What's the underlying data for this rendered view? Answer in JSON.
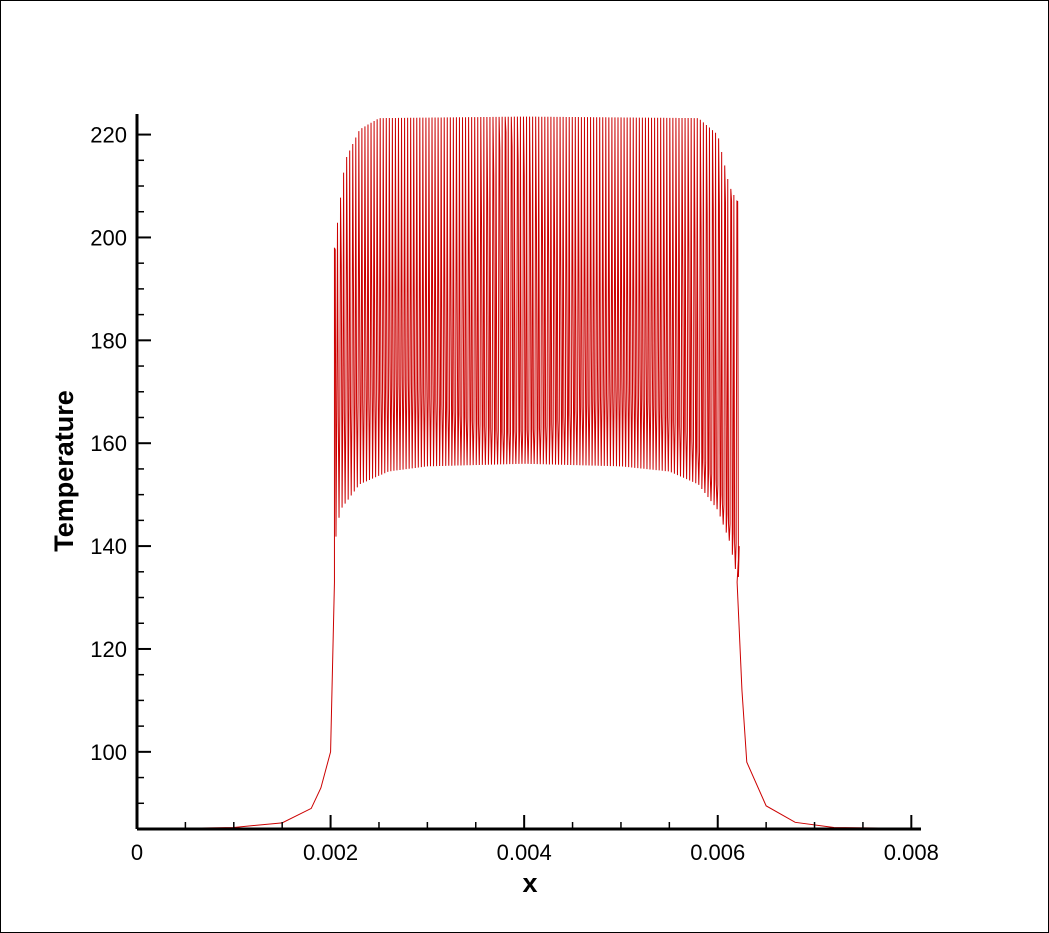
{
  "chart_data": {
    "type": "line",
    "title": "",
    "xlabel": "x",
    "ylabel": "Temperature",
    "xlim": [
      0,
      0.0081
    ],
    "ylim": [
      85,
      224
    ],
    "x_ticks": [
      0,
      0.002,
      0.004,
      0.006,
      0.008
    ],
    "x_tick_labels": [
      "0",
      "0.002",
      "0.004",
      "0.006",
      "0.008"
    ],
    "x_minor_step": 0.0005,
    "y_ticks": [
      100,
      120,
      140,
      160,
      180,
      200,
      220
    ],
    "y_tick_labels": [
      "100",
      "120",
      "140",
      "160",
      "180",
      "200",
      "220"
    ],
    "y_minor_step": 5,
    "grid": false,
    "series": [
      {
        "color": "#cc0000",
        "oscillation_start_x": 0.00204,
        "oscillation_end_x": 0.0062,
        "oscillation_period_x": 3.15e-05,
        "baseline": [
          [
            0.0,
            85.0
          ],
          [
            0.001,
            85.3
          ],
          [
            0.0015,
            86.2
          ],
          [
            0.0018,
            89.0
          ],
          [
            0.0019,
            93.0
          ],
          [
            0.002,
            100.0
          ],
          [
            0.00204,
            133.0
          ]
        ],
        "tail": [
          [
            0.0062,
            133.0
          ],
          [
            0.00625,
            112.0
          ],
          [
            0.0063,
            98.0
          ],
          [
            0.0065,
            89.5
          ],
          [
            0.0068,
            86.3
          ],
          [
            0.0072,
            85.3
          ],
          [
            0.0081,
            85.1
          ]
        ],
        "upper_envelope": [
          [
            0.00204,
            198
          ],
          [
            0.00215,
            215
          ],
          [
            0.0023,
            221
          ],
          [
            0.0025,
            223.2
          ],
          [
            0.004,
            223.5
          ],
          [
            0.0058,
            223.2
          ],
          [
            0.006,
            220
          ],
          [
            0.00612,
            210
          ],
          [
            0.0062,
            207
          ]
        ],
        "lower_envelope": [
          [
            0.00204,
            140
          ],
          [
            0.0021,
            147
          ],
          [
            0.0023,
            152
          ],
          [
            0.0026,
            154.5
          ],
          [
            0.003,
            155.5
          ],
          [
            0.004,
            156.0
          ],
          [
            0.005,
            155.5
          ],
          [
            0.0055,
            154.5
          ],
          [
            0.0058,
            152
          ],
          [
            0.006,
            147
          ],
          [
            0.00612,
            141
          ],
          [
            0.0062,
            134
          ]
        ],
        "mid_envelope": [
          [
            0.00204,
            165
          ],
          [
            0.0023,
            168
          ],
          [
            0.0025,
            170
          ],
          [
            0.0028,
            172
          ],
          [
            0.0031,
            168
          ],
          [
            0.0035,
            164
          ],
          [
            0.0038,
            162
          ],
          [
            0.0042,
            163
          ],
          [
            0.0045,
            166
          ],
          [
            0.0048,
            169
          ],
          [
            0.005,
            171
          ],
          [
            0.0053,
            168
          ],
          [
            0.0057,
            162
          ],
          [
            0.006,
            152
          ],
          [
            0.0062,
            140
          ]
        ],
        "spike_envelope": [
          [
            0.00204,
            198
          ],
          [
            0.0022,
            190
          ],
          [
            0.0025,
            178
          ],
          [
            0.0028,
            172
          ],
          [
            0.0031,
            178
          ],
          [
            0.0034,
            190
          ],
          [
            0.0036,
            205
          ],
          [
            0.0038,
            221
          ],
          [
            0.004,
            212
          ],
          [
            0.0042,
            198
          ],
          [
            0.0045,
            186
          ],
          [
            0.0048,
            175
          ],
          [
            0.0051,
            172
          ],
          [
            0.0054,
            180
          ],
          [
            0.0057,
            196
          ],
          [
            0.0059,
            205
          ],
          [
            0.0061,
            207
          ],
          [
            0.0062,
            207
          ]
        ]
      }
    ]
  }
}
